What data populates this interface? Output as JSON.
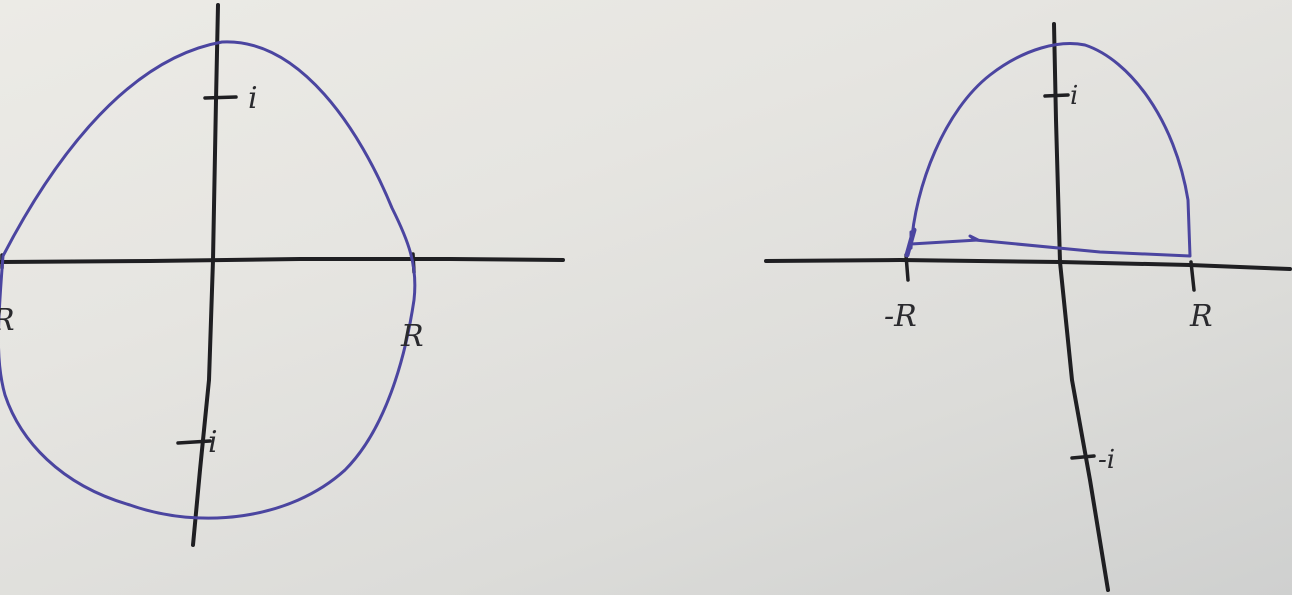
{
  "colors": {
    "paper": "#e9e8e4",
    "ink": "#1f1f22",
    "contour": "#4b45a0"
  },
  "left_diagram": {
    "labels": {
      "plus_i": "i",
      "minus_i": "i",
      "minus_R": "R",
      "plus_R": "R"
    }
  },
  "right_diagram": {
    "labels": {
      "plus_i": "i",
      "minus_i": "-i",
      "minus_R": "-R",
      "plus_R": "R"
    }
  }
}
